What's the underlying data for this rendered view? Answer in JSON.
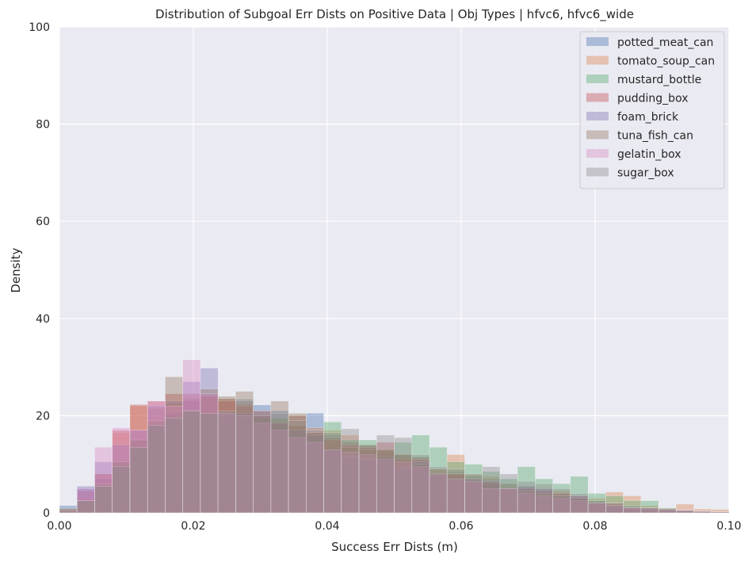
{
  "chart_data": {
    "type": "bar",
    "subtype": "overlapping-histogram",
    "title": "Distribution of Subgoal Err Dists on Positive Data | Obj Types | hfvc6, hfvc6_wide",
    "xlabel": "Success Err Dists (m)",
    "ylabel": "Density",
    "xlim": [
      0.0,
      0.1
    ],
    "ylim": [
      0,
      100
    ],
    "xticks": [
      "0.00",
      "0.02",
      "0.04",
      "0.06",
      "0.08",
      "0.10"
    ],
    "yticks": [
      "0",
      "20",
      "40",
      "60",
      "80",
      "100"
    ],
    "grid": true,
    "legend_position": "top-right",
    "bin_width": 0.002632,
    "bin_starts": [
      0.0,
      0.00263,
      0.00526,
      0.00789,
      0.01053,
      0.01316,
      0.01579,
      0.01842,
      0.02105,
      0.02368,
      0.02632,
      0.02895,
      0.03158,
      0.03421,
      0.03684,
      0.03947,
      0.04211,
      0.04474,
      0.04737,
      0.05,
      0.05263,
      0.05526,
      0.05789,
      0.06053,
      0.06316,
      0.06579,
      0.06842,
      0.07105,
      0.07368,
      0.07632,
      0.07895,
      0.08158,
      0.08421,
      0.08684,
      0.08947,
      0.09211,
      0.09474,
      0.09737
    ],
    "series": [
      {
        "name": "potted_meat_can",
        "color": "#4c72b0",
        "values": [
          1.5,
          5.0,
          7.0,
          10.5,
          15.0,
          18.5,
          20.5,
          23.0,
          24.5,
          23.5,
          23.0,
          22.2,
          21.0,
          20.0,
          20.5,
          16.0,
          14.5,
          14.0,
          12.5,
          12.0,
          11.5,
          8.0,
          8.5,
          7.5,
          7.0,
          6.0,
          5.0,
          4.5,
          4.0,
          3.0,
          2.5,
          1.5,
          1.0,
          1.0,
          0.5,
          0.5,
          0.3,
          0.2
        ]
      },
      {
        "name": "tomato_soup_can",
        "color": "#dd8452",
        "values": [
          0.8,
          3.0,
          8.0,
          16.5,
          22.0,
          21.5,
          22.5,
          23.5,
          24.0,
          23.5,
          22.5,
          20.0,
          19.0,
          20.0,
          17.5,
          17.0,
          16.0,
          14.0,
          13.0,
          12.0,
          11.5,
          9.0,
          12.0,
          8.0,
          7.5,
          6.0,
          5.5,
          5.0,
          4.5,
          3.0,
          3.0,
          4.3,
          3.5,
          1.5,
          1.0,
          1.8,
          0.8,
          0.7
        ]
      },
      {
        "name": "mustard_bottle",
        "color": "#55a868",
        "values": [
          0.5,
          2.5,
          5.5,
          10.0,
          13.5,
          17.0,
          20.0,
          21.0,
          20.5,
          19.5,
          20.0,
          19.5,
          19.5,
          18.0,
          16.0,
          18.7,
          15.0,
          15.0,
          13.0,
          14.5,
          16.0,
          13.5,
          10.5,
          10.0,
          8.5,
          7.0,
          9.5,
          7.0,
          6.0,
          7.5,
          4.0,
          3.5,
          2.5,
          2.5,
          1.0,
          0.5,
          0.3,
          0.2
        ]
      },
      {
        "name": "pudding_box",
        "color": "#c44e52",
        "values": [
          0.5,
          4.5,
          8.0,
          17.0,
          22.3,
          23.0,
          24.5,
          24.5,
          24.0,
          23.0,
          22.0,
          21.0,
          18.5,
          18.0,
          16.5,
          15.0,
          14.0,
          13.5,
          14.5,
          11.0,
          11.0,
          8.0,
          8.0,
          6.5,
          6.0,
          5.0,
          5.0,
          4.5,
          4.0,
          3.5,
          2.0,
          2.0,
          1.0,
          1.0,
          0.5,
          0.3,
          0.2,
          0.1
        ]
      },
      {
        "name": "foam_brick",
        "color": "#8172b3",
        "values": [
          0.3,
          5.5,
          10.5,
          14.0,
          17.0,
          22.0,
          23.0,
          27.0,
          29.8,
          20.5,
          20.5,
          20.0,
          18.5,
          17.0,
          16.0,
          13.0,
          11.5,
          11.0,
          11.5,
          9.0,
          10.5,
          8.0,
          7.0,
          7.0,
          6.5,
          5.0,
          5.5,
          5.0,
          3.5,
          3.5,
          2.0,
          1.5,
          1.0,
          1.0,
          0.8,
          0.5,
          0.3,
          0.2
        ]
      },
      {
        "name": "tuna_fish_can",
        "color": "#937860",
        "values": [
          0.8,
          2.5,
          6.0,
          10.5,
          15.0,
          19.0,
          28.0,
          21.0,
          25.5,
          24.0,
          25.0,
          20.0,
          23.0,
          20.5,
          16.5,
          15.5,
          13.5,
          13.0,
          13.0,
          12.0,
          10.0,
          9.0,
          8.0,
          7.0,
          6.5,
          5.0,
          4.5,
          4.0,
          3.5,
          3.0,
          2.0,
          1.5,
          1.0,
          1.0,
          0.8,
          0.5,
          0.3,
          0.2
        ]
      },
      {
        "name": "gelatin_box",
        "color": "#da8bc3",
        "values": [
          0.5,
          5.0,
          13.5,
          17.5,
          17.0,
          23.0,
          22.0,
          31.5,
          24.5,
          20.5,
          20.0,
          18.5,
          17.0,
          15.5,
          14.5,
          13.0,
          12.5,
          12.0,
          11.0,
          10.5,
          9.5,
          8.0,
          7.0,
          6.5,
          5.0,
          5.0,
          4.0,
          3.5,
          3.0,
          2.5,
          2.0,
          1.5,
          1.0,
          0.8,
          0.6,
          0.5,
          0.3,
          0.2
        ]
      },
      {
        "name": "sugar_box",
        "color": "#8c8c8c",
        "values": [
          1.0,
          2.5,
          5.5,
          9.5,
          13.5,
          18.0,
          19.5,
          21.0,
          20.5,
          21.0,
          23.5,
          21.0,
          20.5,
          19.0,
          17.0,
          16.5,
          17.3,
          14.0,
          16.0,
          15.5,
          12.0,
          9.5,
          9.0,
          8.0,
          9.5,
          8.0,
          6.5,
          6.0,
          5.0,
          4.0,
          2.5,
          2.0,
          1.5,
          1.0,
          0.8,
          0.5,
          0.3,
          0.2
        ]
      }
    ]
  }
}
